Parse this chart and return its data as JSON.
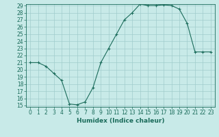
{
  "x": [
    0,
    1,
    2,
    3,
    4,
    5,
    6,
    7,
    8,
    9,
    10,
    11,
    12,
    13,
    14,
    15,
    16,
    17,
    18,
    19,
    20,
    21,
    22,
    23
  ],
  "y": [
    21,
    21,
    20.5,
    19.5,
    18.5,
    15.2,
    15.1,
    15.5,
    17.5,
    21,
    23,
    25,
    27,
    28,
    29.2,
    29,
    29,
    29.1,
    29,
    28.5,
    26.5,
    22.5,
    22.5,
    22.5
  ],
  "line_color": "#1a6b5a",
  "marker": "+",
  "marker_color": "#1a6b5a",
  "bg_color": "#c8eae8",
  "grid_color": "#a0cccc",
  "xlabel": "Humidex (Indice chaleur)",
  "ylabel": "",
  "ylim_min": 15,
  "ylim_max": 29,
  "xlim_min": -0.5,
  "xlim_max": 23.5,
  "yticks": [
    15,
    16,
    17,
    18,
    19,
    20,
    21,
    22,
    23,
    24,
    25,
    26,
    27,
    28,
    29
  ],
  "xticks": [
    0,
    1,
    2,
    3,
    4,
    5,
    6,
    7,
    8,
    9,
    10,
    11,
    12,
    13,
    14,
    15,
    16,
    17,
    18,
    19,
    20,
    21,
    22,
    23
  ],
  "tick_label_fontsize": 5.5,
  "xlabel_fontsize": 6.5,
  "linewidth": 0.8,
  "markersize": 3.5,
  "markeredgewidth": 0.8
}
